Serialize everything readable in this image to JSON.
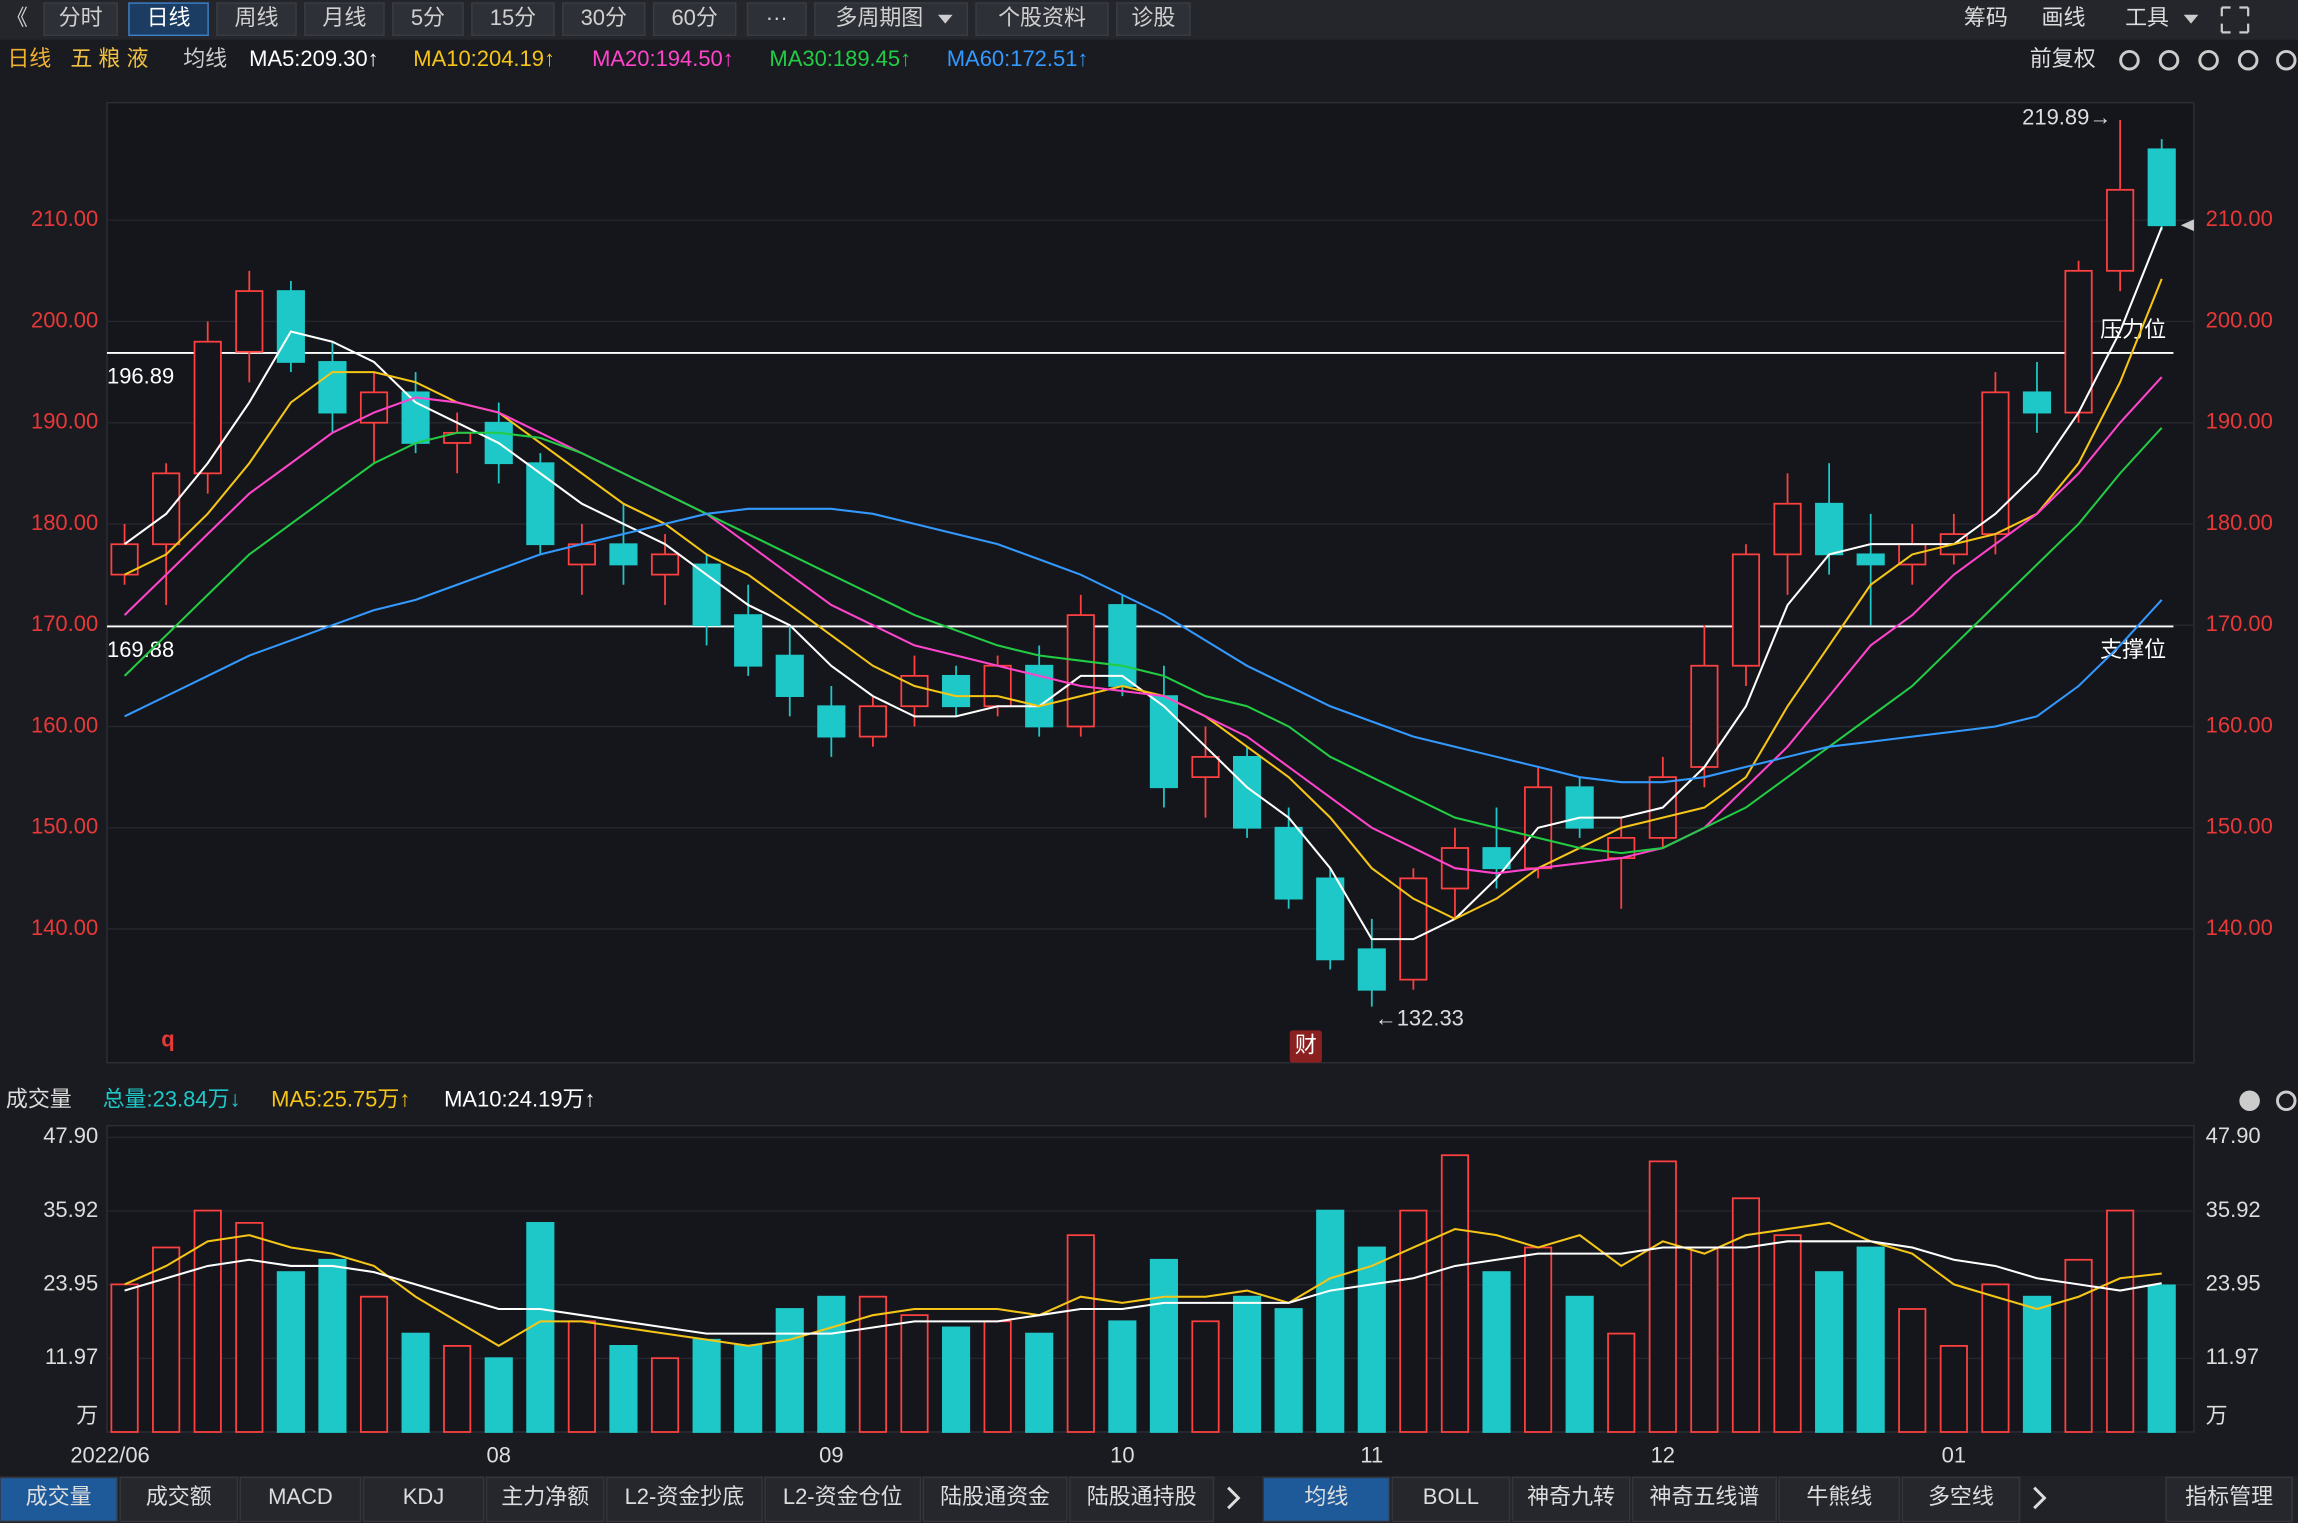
{
  "toolbar": {
    "back": "《",
    "buttons": [
      "分时",
      "日线",
      "周线",
      "月线",
      "5分",
      "15分",
      "30分",
      "60分",
      "···",
      "多周期图",
      "个股资料",
      "诊股"
    ],
    "active": 1,
    "right": [
      "筹码",
      "画线",
      "工具"
    ]
  },
  "header": {
    "period": "日线",
    "stock": "五 粮 液",
    "ma_label": "均线",
    "adjust": "前复权"
  },
  "chart_data": [
    {
      "type": "candlestick",
      "open": [
        175,
        178,
        185,
        197,
        203,
        196,
        190,
        193,
        188,
        190,
        186,
        176,
        178,
        175,
        176,
        171,
        167,
        162,
        159,
        162,
        165,
        162,
        166,
        160,
        172,
        163,
        155,
        157,
        150,
        145,
        138,
        135,
        144,
        148,
        146,
        154,
        147,
        149,
        156,
        166,
        177,
        182,
        177,
        176,
        177,
        179,
        193,
        191,
        205,
        217
      ],
      "high": [
        180,
        186,
        200,
        205,
        204,
        198,
        195,
        195,
        191,
        192,
        187,
        180,
        182,
        179,
        177,
        174,
        170,
        164,
        163,
        167,
        166,
        167,
        168,
        173,
        173,
        166,
        160,
        158,
        152,
        146,
        141,
        146,
        150,
        152,
        156,
        155,
        151,
        157,
        170,
        178,
        185,
        186,
        181,
        180,
        181,
        195,
        196,
        206,
        219.89,
        218
      ],
      "low": [
        174,
        172,
        183,
        194,
        195,
        189,
        186,
        187,
        185,
        184,
        177,
        173,
        174,
        172,
        168,
        165,
        161,
        157,
        158,
        160,
        161,
        161,
        159,
        159,
        163,
        152,
        151,
        149,
        142,
        136,
        132.33,
        134,
        141,
        144,
        145,
        149,
        142,
        148,
        154,
        164,
        173,
        175,
        170,
        174,
        176,
        177,
        189,
        190,
        203,
        209
      ],
      "close": [
        178,
        185,
        198,
        203,
        196,
        191,
        193,
        188,
        189,
        186,
        178,
        178,
        176,
        177,
        170,
        166,
        163,
        159,
        162,
        165,
        162,
        166,
        160,
        171,
        164,
        154,
        157,
        150,
        143,
        137,
        134,
        145,
        148,
        146,
        154,
        150,
        149,
        155,
        166,
        177,
        182,
        177,
        176,
        178,
        179,
        193,
        191,
        205,
        213,
        209.5
      ],
      "series": [
        {
          "name": "MA5:209.30↑",
          "color": "#ffffff",
          "values": [
            178,
            181,
            186,
            192,
            199,
            198,
            196,
            192,
            190,
            188,
            185,
            182,
            180,
            178,
            175,
            172,
            170,
            166,
            163,
            161,
            161,
            162,
            162,
            165,
            165,
            162,
            158,
            154,
            151,
            146,
            139,
            139,
            141,
            145,
            150,
            151,
            151,
            152,
            156,
            162,
            172,
            177,
            178,
            178,
            178,
            181,
            185,
            191,
            199,
            209.3
          ]
        },
        {
          "name": "MA10:204.19↑",
          "color": "#f5c518",
          "values": [
            175,
            177,
            181,
            186,
            192,
            195,
            195,
            194,
            192,
            191,
            188,
            185,
            182,
            180,
            177,
            175,
            172,
            169,
            166,
            164,
            163,
            163,
            162,
            163,
            164,
            163,
            161,
            158,
            155,
            151,
            146,
            143,
            141,
            143,
            146,
            148,
            150,
            151,
            152,
            155,
            162,
            168,
            174,
            177,
            178,
            179,
            181,
            186,
            194,
            204.2
          ]
        },
        {
          "name": "MA20:194.50↑",
          "color": "#ff44cc",
          "values": [
            171,
            175,
            179,
            183,
            186,
            189,
            191,
            192.5,
            192,
            191,
            189,
            187,
            185,
            183,
            181,
            178,
            175,
            172,
            170,
            168,
            167,
            166,
            165,
            164,
            163.5,
            163,
            161,
            159,
            156,
            153,
            150,
            148,
            146,
            145.5,
            146,
            146.5,
            147,
            148,
            150,
            154,
            158,
            163,
            168,
            171,
            175,
            178,
            181,
            185,
            190,
            194.5
          ]
        },
        {
          "name": "MA30:189.45↑",
          "color": "#22cc44",
          "values": [
            165,
            169,
            173,
            177,
            180,
            183,
            186,
            188,
            189,
            189,
            188.5,
            187,
            185,
            183,
            181,
            179,
            177,
            175,
            173,
            171,
            169.5,
            168,
            167,
            166.5,
            166,
            165,
            163,
            162,
            160,
            157,
            155,
            153,
            151,
            150,
            149,
            148,
            147.5,
            148,
            150,
            152,
            155,
            158,
            161,
            164,
            168,
            172,
            176,
            180,
            185,
            189.5
          ]
        },
        {
          "name": "MA60:172.51↑",
          "color": "#3399ff",
          "values": [
            161,
            163,
            165,
            167,
            168.5,
            170,
            171.5,
            172.5,
            174,
            175.5,
            177,
            178,
            179,
            180,
            181,
            181.5,
            181.5,
            181.5,
            181,
            180,
            179,
            178,
            176.5,
            175,
            173,
            171,
            168.5,
            166,
            164,
            162,
            160.5,
            159,
            158,
            157,
            156,
            155,
            154.5,
            154.5,
            155,
            156,
            157,
            158,
            158.5,
            159,
            159.5,
            160,
            161,
            164,
            168,
            172.5
          ]
        }
      ],
      "ylim": [
        126.8,
        221.6
      ],
      "yticks": [
        {
          "value": 140,
          "label": "140.00"
        },
        {
          "value": 150,
          "label": "150.00"
        },
        {
          "value": 160,
          "label": "160.00"
        },
        {
          "value": 170,
          "label": "170.00"
        },
        {
          "value": 180,
          "label": "180.00"
        },
        {
          "value": 190,
          "label": "190.00"
        },
        {
          "value": 200,
          "label": "200.00"
        },
        {
          "value": 210,
          "label": "210.00"
        }
      ],
      "grid": true,
      "up_color": "#ff4040",
      "down_color": "#1ec8c8",
      "levels": [
        196.89,
        169.88
      ],
      "level_tags": [
        "压力位",
        "支撑位"
      ],
      "high_label": "219.89→",
      "low_label": "←132.33",
      "mark_q": "q",
      "mark_cai": "财"
    },
    {
      "type": "bar",
      "title": "成交量",
      "total": "总量:23.84万↓",
      "categories": [
        "2022/06",
        null,
        null,
        null,
        null,
        null,
        null,
        null,
        null,
        "08",
        null,
        null,
        null,
        null,
        null,
        null,
        null,
        "09",
        null,
        null,
        null,
        null,
        null,
        null,
        "10",
        null,
        null,
        null,
        null,
        null,
        "11",
        null,
        null,
        null,
        null,
        null,
        null,
        "12",
        null,
        null,
        null,
        null,
        null,
        null,
        "01",
        null,
        null,
        null,
        null,
        null
      ],
      "values": [
        24,
        30,
        36,
        34,
        26,
        28,
        22,
        16,
        14,
        12,
        34,
        18,
        14,
        12,
        15,
        14,
        20,
        22,
        22,
        19,
        17,
        18,
        16,
        32,
        18,
        28,
        18,
        22,
        20,
        36,
        30,
        36,
        45,
        26,
        30,
        22,
        16,
        44,
        30,
        38,
        32,
        26,
        30,
        20,
        14,
        24,
        22,
        28,
        36,
        23.84
      ],
      "series": [
        {
          "name": "MA5:25.75万↑",
          "color": "#f5c518",
          "values": [
            24,
            27,
            31,
            32,
            30,
            29,
            27,
            22,
            18,
            14,
            18,
            18,
            17,
            16,
            15,
            14,
            15,
            17,
            19,
            20,
            20,
            20,
            19,
            22,
            21,
            22,
            22,
            23,
            21,
            25,
            27,
            30,
            33,
            32,
            30,
            32,
            27,
            31,
            29,
            32,
            33,
            34,
            31,
            29,
            24,
            22,
            20,
            22,
            25,
            25.75
          ]
        },
        {
          "name": "MA10:24.19万↑",
          "color": "#ffffff",
          "values": [
            23,
            25,
            27,
            28,
            27,
            27,
            26,
            24,
            22,
            20,
            20,
            19,
            18,
            17,
            16,
            16,
            16,
            16,
            17,
            18,
            18,
            18,
            19,
            20,
            20,
            21,
            21,
            21,
            21,
            23,
            24,
            25,
            27,
            28,
            29,
            29,
            29,
            30,
            30,
            30,
            31,
            31,
            31,
            30,
            28,
            27,
            25,
            24,
            23,
            24.19
          ]
        }
      ],
      "ylim": [
        0,
        49.8
      ],
      "yticks": [
        {
          "value": 0,
          "label": "万"
        },
        11.97,
        23.95,
        35.92,
        {
          "value": 47.9,
          "label": "47.90"
        }
      ]
    }
  ],
  "indicator_tabs": {
    "left": [
      "成交量",
      "成交额",
      "MACD",
      "KDJ",
      "主力净额",
      "L2-资金抄底",
      "L2-资金仓位",
      "陆股通资金",
      "陆股通持股"
    ],
    "right": [
      "均线",
      "BOLL",
      "神奇九转",
      "神奇五线谱",
      "牛熊线",
      "多空线"
    ],
    "left_active": 0,
    "right_active": 0,
    "manage": "指标管理"
  }
}
